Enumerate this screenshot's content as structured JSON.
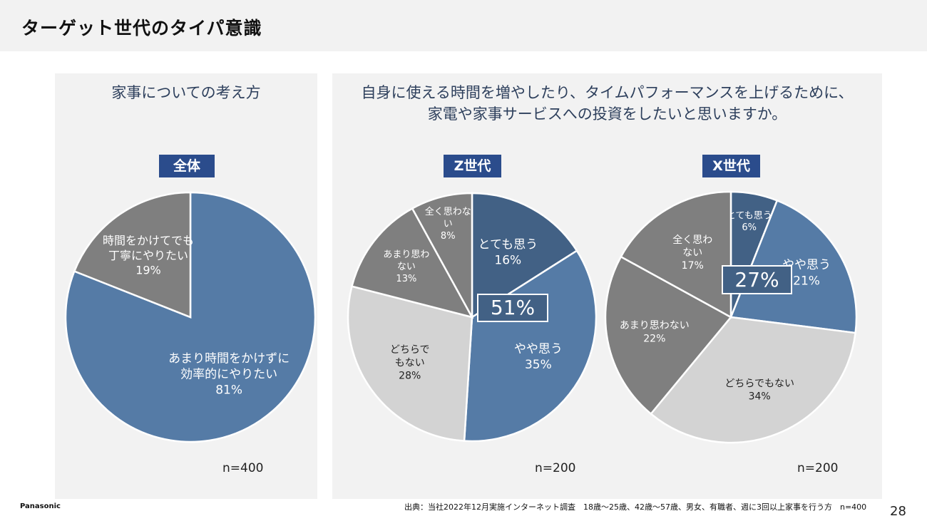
{
  "header": {
    "title": "ターゲット世代のタイパ意識"
  },
  "left_panel": {
    "title": "家事についての考え方",
    "badge": "全体",
    "n": "n=400"
  },
  "right_panel": {
    "title_line1": "自身に使える時間を増やしたり、タイムパフォーマンスを上げるために、",
    "title_line2": "家電や家事サービスへの投資をしたいと思いますか。"
  },
  "z_gen": {
    "badge": "Z世代",
    "n": "n=200",
    "callout": "51%"
  },
  "x_gen": {
    "badge": "X世代",
    "n": "n=200",
    "callout": "27%"
  },
  "footer": {
    "logo": "Panasonic",
    "source": "出典：当社2022年12月実施インターネット調査　18歳～25歳、42歳～57歳、男女、有職者、週に3回以上家事を行う方　n=400",
    "page": "28"
  },
  "colors": {
    "dark_blue": "#426185",
    "blue": "#557BA6",
    "dark_gray": "#7F7F7F",
    "light_gray": "#D3D3D3",
    "badge": "#2B4C8C"
  },
  "chart_data": [
    {
      "type": "pie",
      "title": "全体",
      "slices": [
        {
          "label": "あまり時間をかけずに効率的にやりたい",
          "lines": [
            "あまり時間をかけずに",
            "効率的にやりたい",
            "81%"
          ],
          "value": 81,
          "color": "#557BA6"
        },
        {
          "label": "時間をかけてでも丁寧にやりたい",
          "lines": [
            "時間をかけてでも",
            "丁寧にやりたい",
            "19%"
          ],
          "value": 19,
          "color": "#7F7F7F"
        }
      ]
    },
    {
      "type": "pie",
      "title": "Z世代",
      "slices": [
        {
          "label": "とても思う",
          "lines": [
            "とても思う",
            "16%"
          ],
          "value": 16,
          "color": "#426185"
        },
        {
          "label": "やや思う",
          "lines": [
            "やや思う",
            "35%"
          ],
          "value": 35,
          "color": "#557BA6"
        },
        {
          "label": "どちらでもない",
          "lines": [
            "どちらで",
            "もない",
            "28%"
          ],
          "value": 28,
          "color": "#D3D3D3"
        },
        {
          "label": "あまり思わない",
          "lines": [
            "あまり思わ",
            "ない",
            "13%"
          ],
          "value": 13,
          "color": "#7F7F7F"
        },
        {
          "label": "全く思わない",
          "lines": [
            "全く思わな",
            "い",
            "8%"
          ],
          "value": 8,
          "color": "#7F7F7F"
        }
      ]
    },
    {
      "type": "pie",
      "title": "X世代",
      "slices": [
        {
          "label": "とても思う",
          "lines": [
            "とても思う",
            "6%"
          ],
          "value": 6,
          "color": "#426185"
        },
        {
          "label": "やや思う",
          "lines": [
            "やや思う",
            "21%"
          ],
          "value": 21,
          "color": "#557BA6"
        },
        {
          "label": "どちらでもない",
          "lines": [
            "どちらでもない",
            "34%"
          ],
          "value": 34,
          "color": "#D3D3D3"
        },
        {
          "label": "あまり思わない",
          "lines": [
            "あまり思わない",
            "22%"
          ],
          "value": 22,
          "color": "#7F7F7F"
        },
        {
          "label": "全く思わない",
          "lines": [
            "全く思わ",
            "ない",
            "17%"
          ],
          "value": 17,
          "color": "#7F7F7F"
        }
      ]
    }
  ]
}
